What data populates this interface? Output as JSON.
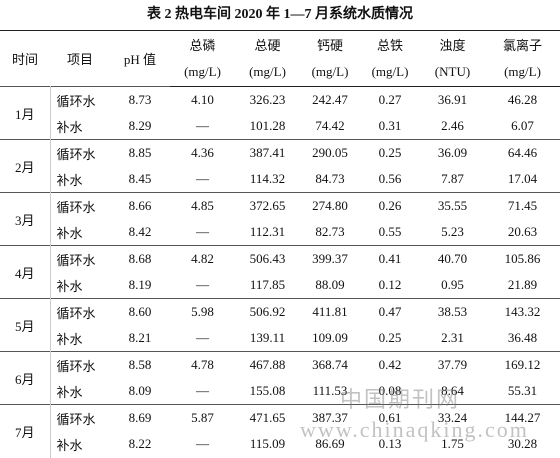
{
  "title": "表 2 热电车间 2020 年 1—7 月系统水质情况",
  "table": {
    "columns": [
      {
        "name": "时间"
      },
      {
        "name": "项目"
      },
      {
        "name": "pH 值"
      },
      {
        "name": "总磷",
        "unit": "(mg/L)"
      },
      {
        "name": "总硬",
        "unit": "(mg/L)"
      },
      {
        "name": "钙硬",
        "unit": "(mg/L)"
      },
      {
        "name": "总铁",
        "unit": "(mg/L)"
      },
      {
        "name": "浊度",
        "unit": "(NTU)"
      },
      {
        "name": "氯离子",
        "unit": "(mg/L)"
      }
    ],
    "groups": [
      {
        "month": "1月",
        "rows": [
          [
            "循环水",
            "8.73",
            "4.10",
            "326.23",
            "242.47",
            "0.27",
            "36.91",
            "46.28"
          ],
          [
            "补水",
            "8.29",
            "—",
            "101.28",
            "74.42",
            "0.31",
            "2.46",
            "6.07"
          ]
        ]
      },
      {
        "month": "2月",
        "rows": [
          [
            "循环水",
            "8.85",
            "4.36",
            "387.41",
            "290.05",
            "0.25",
            "36.09",
            "64.46"
          ],
          [
            "补水",
            "8.45",
            "—",
            "114.32",
            "84.73",
            "0.56",
            "7.87",
            "17.04"
          ]
        ]
      },
      {
        "month": "3月",
        "rows": [
          [
            "循环水",
            "8.66",
            "4.85",
            "372.65",
            "274.80",
            "0.26",
            "35.55",
            "71.45"
          ],
          [
            "补水",
            "8.42",
            "—",
            "112.31",
            "82.73",
            "0.55",
            "5.23",
            "20.63"
          ]
        ]
      },
      {
        "month": "4月",
        "rows": [
          [
            "循环水",
            "8.68",
            "4.82",
            "506.43",
            "399.37",
            "0.41",
            "40.70",
            "105.86"
          ],
          [
            "补水",
            "8.19",
            "—",
            "117.85",
            "88.09",
            "0.12",
            "0.95",
            "21.89"
          ]
        ]
      },
      {
        "month": "5月",
        "rows": [
          [
            "循环水",
            "8.60",
            "5.98",
            "506.92",
            "411.81",
            "0.47",
            "38.53",
            "143.32"
          ],
          [
            "补水",
            "8.21",
            "—",
            "139.11",
            "109.09",
            "0.25",
            "2.31",
            "36.48"
          ]
        ]
      },
      {
        "month": "6月",
        "rows": [
          [
            "循环水",
            "8.58",
            "4.78",
            "467.88",
            "368.74",
            "0.42",
            "37.79",
            "169.12"
          ],
          [
            "补水",
            "8.09",
            "—",
            "155.08",
            "111.53",
            "0.08",
            "8.64",
            "55.31"
          ]
        ]
      },
      {
        "month": "7月",
        "rows": [
          [
            "循环水",
            "8.69",
            "5.87",
            "471.65",
            "387.37",
            "0.61",
            "33.24",
            "144.27"
          ],
          [
            "补水",
            "8.22",
            "—",
            "115.09",
            "86.69",
            "0.13",
            "1.75",
            "30.28"
          ]
        ]
      }
    ]
  },
  "watermark": {
    "line1": "中国期刊网",
    "line2": "www.chinaqking.com"
  }
}
